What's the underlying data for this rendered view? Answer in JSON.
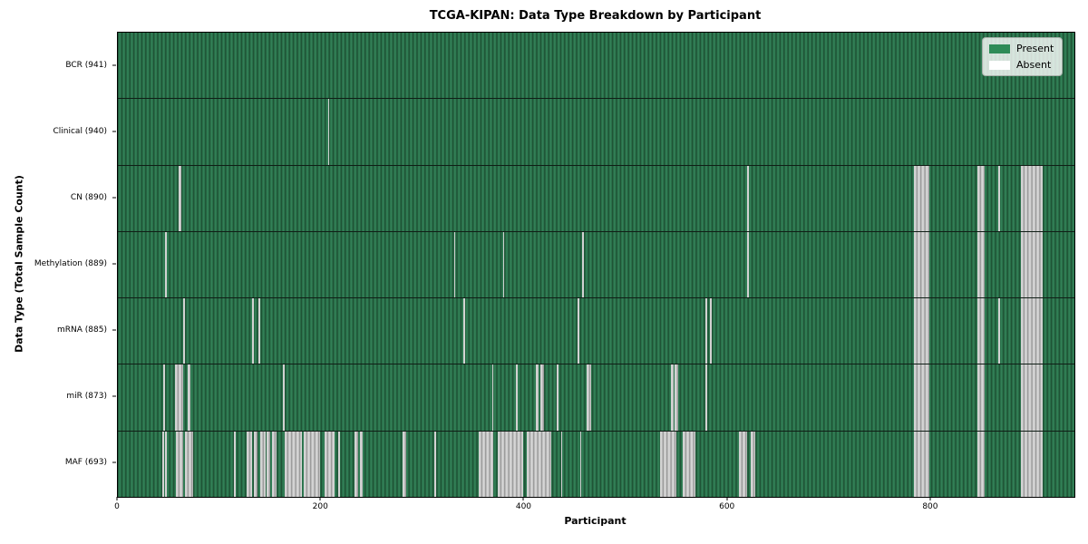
{
  "figure": {
    "title": "TCGA-KIPAN: Data Type Breakdown by Participant",
    "xlabel": "Participant",
    "ylabel": "Data Type (Total Sample Count)"
  },
  "legend": {
    "present_label": "Present",
    "absent_label": "Absent",
    "present_color": "#2e8b57",
    "absent_color": "#ffffff"
  },
  "chart_data": {
    "type": "heatmap",
    "title": "TCGA-KIPAN: Data Type Breakdown by Participant",
    "xlabel": "Participant",
    "ylabel": "Data Type (Total Sample Count)",
    "x_axis": {
      "min": 0,
      "max": 941,
      "ticks": [
        0,
        200,
        400,
        600,
        800
      ]
    },
    "legend_entries": [
      "Present",
      "Absent"
    ],
    "legend_position": "upper right",
    "colors": {
      "present": "#2e8b57",
      "absent": "#ffffff"
    },
    "grid": false,
    "rows": [
      {
        "name": "bcr",
        "label": "BCR (941)",
        "data_type": "BCR",
        "present_count": 941,
        "absent_ranges": []
      },
      {
        "name": "clinical",
        "label": "Clinical (940)",
        "data_type": "Clinical",
        "present_count": 940,
        "absent_ranges": [
          [
            207,
            208
          ]
        ]
      },
      {
        "name": "cn",
        "label": "CN (890)",
        "data_type": "CN",
        "present_count": 890,
        "absent_ranges": [
          [
            60,
            62
          ],
          [
            619,
            621
          ],
          [
            783,
            798
          ],
          [
            846,
            853
          ],
          [
            866,
            868
          ],
          [
            888,
            910
          ]
        ]
      },
      {
        "name": "methylation",
        "label": "Methylation (889)",
        "data_type": "Methylation",
        "present_count": 889,
        "absent_ranges": [
          [
            46,
            48
          ],
          [
            331,
            332
          ],
          [
            379,
            380
          ],
          [
            457,
            458
          ],
          [
            619,
            621
          ],
          [
            783,
            798
          ],
          [
            846,
            853
          ],
          [
            888,
            910
          ]
        ]
      },
      {
        "name": "mrna",
        "label": "mRNA (885)",
        "data_type": "mRNA",
        "present_count": 885,
        "absent_ranges": [
          [
            64,
            66
          ],
          [
            132,
            134
          ],
          [
            138,
            140
          ],
          [
            340,
            342
          ],
          [
            452,
            454
          ],
          [
            578,
            580
          ],
          [
            582,
            584
          ],
          [
            783,
            798
          ],
          [
            846,
            853
          ],
          [
            866,
            868
          ],
          [
            888,
            910
          ]
        ]
      },
      {
        "name": "mir",
        "label": "miR (873)",
        "data_type": "miR",
        "present_count": 873,
        "absent_ranges": [
          [
            45,
            46
          ],
          [
            56,
            64
          ],
          [
            69,
            71
          ],
          [
            162,
            164
          ],
          [
            368,
            369
          ],
          [
            392,
            393
          ],
          [
            411,
            414
          ],
          [
            416,
            419
          ],
          [
            432,
            433
          ],
          [
            461,
            466
          ],
          [
            544,
            547
          ],
          [
            548,
            551
          ],
          [
            578,
            580
          ],
          [
            783,
            798
          ],
          [
            846,
            853
          ],
          [
            888,
            910
          ]
        ]
      },
      {
        "name": "maf",
        "label": "MAF (693)",
        "data_type": "MAF",
        "present_count": 693,
        "absent_ranges": [
          [
            44,
            45
          ],
          [
            46,
            48
          ],
          [
            57,
            64
          ],
          [
            66,
            74
          ],
          [
            114,
            116
          ],
          [
            127,
            132
          ],
          [
            134,
            137
          ],
          [
            140,
            145
          ],
          [
            146,
            150
          ],
          [
            152,
            156
          ],
          [
            164,
            181
          ],
          [
            183,
            199
          ],
          [
            203,
            213
          ],
          [
            217,
            218
          ],
          [
            233,
            236
          ],
          [
            238,
            241
          ],
          [
            280,
            284
          ],
          [
            311,
            313
          ],
          [
            355,
            369
          ],
          [
            374,
            399
          ],
          [
            402,
            426
          ],
          [
            436,
            437
          ],
          [
            455,
            456
          ],
          [
            533,
            549
          ],
          [
            556,
            568
          ],
          [
            611,
            619
          ],
          [
            623,
            627
          ],
          [
            783,
            798
          ],
          [
            846,
            853
          ],
          [
            888,
            910
          ]
        ]
      }
    ]
  }
}
